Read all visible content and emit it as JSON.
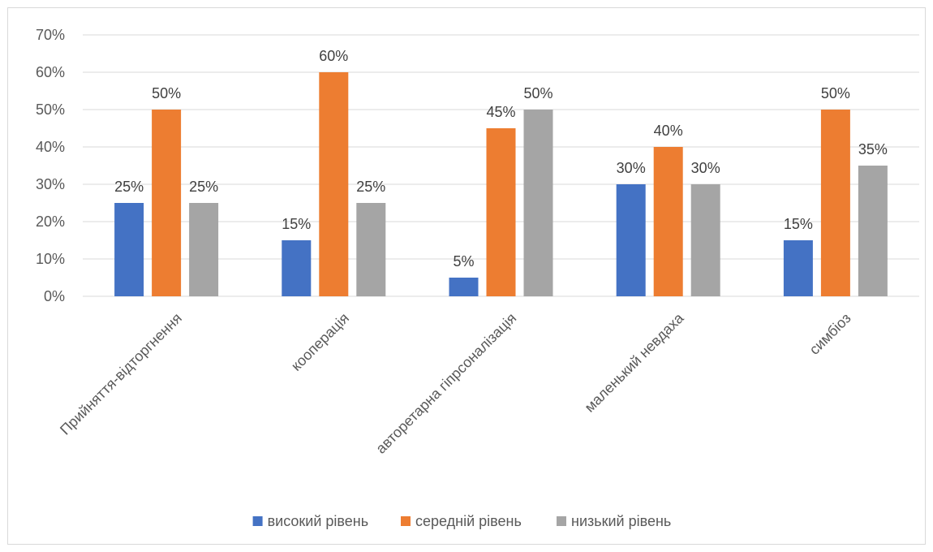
{
  "chart_data": {
    "type": "bar",
    "categories": [
      "Прийняття-відторгнення",
      "кооперація",
      "авторетарна гіпрсоналізація",
      "маленький невдаха",
      "симбіоз"
    ],
    "series": [
      {
        "name": "високий рівень",
        "values": [
          25,
          15,
          5,
          30,
          15
        ],
        "color": "#4472C4"
      },
      {
        "name": "середній рівень",
        "values": [
          50,
          60,
          45,
          40,
          50
        ],
        "color": "#ED7D31"
      },
      {
        "name": "низький рівень",
        "values": [
          25,
          25,
          50,
          30,
          35
        ],
        "color": "#A5A5A5"
      }
    ],
    "ylim": [
      0,
      70
    ],
    "yticks": [
      "0%",
      "10%",
      "20%",
      "30%",
      "40%",
      "50%",
      "60%",
      "70%"
    ],
    "value_suffix": "%",
    "grid": true,
    "legend": "bottom",
    "gridline_color": "#d9d9d9"
  }
}
